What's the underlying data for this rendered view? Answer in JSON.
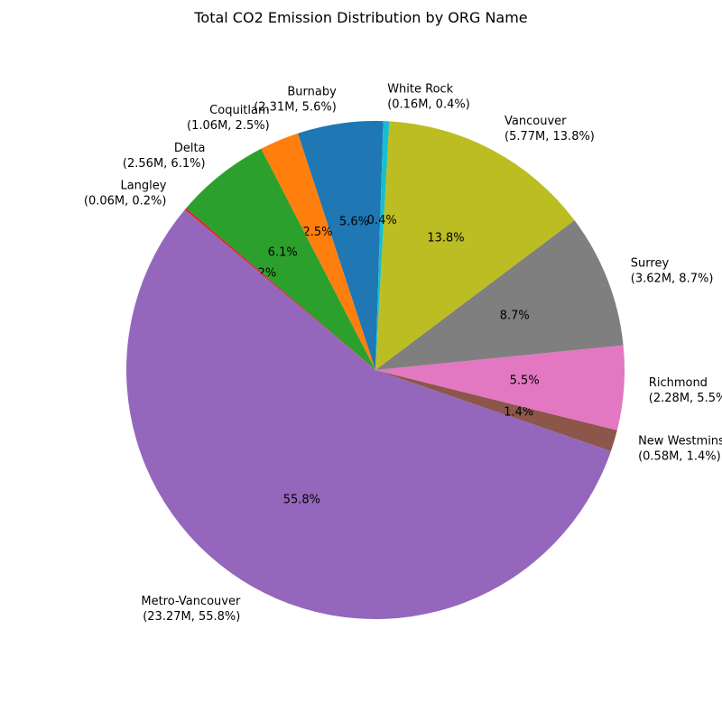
{
  "chart_data": {
    "type": "pie",
    "title": "Total CO2 Emission Distribution by ORG Name",
    "start_angle_deg": 88.2,
    "direction": "counterclockwise",
    "slices": [
      {
        "name": "Burnaby",
        "value": 2.31,
        "value_label": "2.31M",
        "percent_label": "5.6%",
        "color": "#1f77b4"
      },
      {
        "name": "Coquitlam",
        "value": 1.06,
        "value_label": "1.06M",
        "percent_label": "2.5%",
        "color": "#ff7f0e"
      },
      {
        "name": "Delta",
        "value": 2.56,
        "value_label": "2.56M",
        "percent_label": "6.1%",
        "color": "#2ca02c"
      },
      {
        "name": "Langley",
        "value": 0.06,
        "value_label": "0.06M",
        "percent_label": "0.2%",
        "color": "#d62728"
      },
      {
        "name": "Metro-Vancouver",
        "value": 23.27,
        "value_label": "23.27M",
        "percent_label": "55.8%",
        "color": "#9467bd"
      },
      {
        "name": "New Westminster",
        "value": 0.58,
        "value_label": "0.58M",
        "percent_label": "1.4%",
        "color": "#8c564b"
      },
      {
        "name": "Richmond",
        "value": 2.28,
        "value_label": "2.28M",
        "percent_label": "5.5%",
        "color": "#e377c2"
      },
      {
        "name": "Surrey",
        "value": 3.62,
        "value_label": "3.62M",
        "percent_label": "8.7%",
        "color": "#7f7f7f"
      },
      {
        "name": "Vancouver",
        "value": 5.77,
        "value_label": "5.77M",
        "percent_label": "13.8%",
        "color": "#bcbd22"
      },
      {
        "name": "White Rock",
        "value": 0.16,
        "value_label": "0.16M",
        "percent_label": "0.4%",
        "color": "#17becf"
      }
    ]
  }
}
